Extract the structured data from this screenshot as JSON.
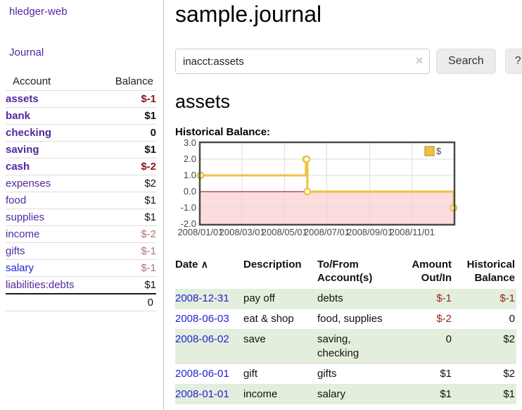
{
  "sidebar": {
    "brand": "hledger-web",
    "journal_link": "Journal",
    "accounts_table": {
      "headers": {
        "account": "Account",
        "balance": "Balance"
      },
      "rows": [
        {
          "account": "assets",
          "indent": 1,
          "balance": "$-1",
          "bold": true,
          "negative": "strong"
        },
        {
          "account": "bank",
          "indent": 2,
          "balance": "$1",
          "bold": true,
          "negative": null
        },
        {
          "account": "checking",
          "indent": 3,
          "balance": "0",
          "bold": true,
          "negative": null
        },
        {
          "account": "saving",
          "indent": 3,
          "balance": "$1",
          "bold": true,
          "negative": null
        },
        {
          "account": "cash",
          "indent": 2,
          "balance": "$-2",
          "bold": true,
          "negative": "strong"
        },
        {
          "account": "expenses",
          "indent": 1,
          "balance": "$2",
          "bold": false,
          "negative": null
        },
        {
          "account": "food",
          "indent": 2,
          "balance": "$1",
          "bold": false,
          "negative": null
        },
        {
          "account": "supplies",
          "indent": 2,
          "balance": "$1",
          "bold": false,
          "negative": null
        },
        {
          "account": "income",
          "indent": 1,
          "balance": "$-2",
          "bold": false,
          "negative": "soft"
        },
        {
          "account": "gifts",
          "indent": 2,
          "balance": "$-1",
          "bold": false,
          "negative": "soft"
        },
        {
          "account": "salary",
          "indent": 2,
          "balance": "$-1",
          "bold": false,
          "negative": "soft",
          "link_color": "blue"
        },
        {
          "account": "liabilities:debts",
          "indent": 1,
          "balance": "$1",
          "bold": false,
          "negative": null
        }
      ],
      "total": "0"
    }
  },
  "header": {
    "title": "sample.journal"
  },
  "search": {
    "value": "inacct:assets",
    "clear_icon": "✕",
    "search_button": "Search",
    "help_button": "?"
  },
  "account_heading": "assets",
  "chart_data": {
    "type": "line",
    "title": "Historical Balance:",
    "legend": "$",
    "legend_position": "top-right",
    "grid": true,
    "ylim": [
      -2,
      3
    ],
    "y_ticks": [
      "3.0",
      "2.0",
      "1.0",
      "0.0",
      "-1.0",
      "-2.0"
    ],
    "x_range_days": [
      0,
      365
    ],
    "x_ticks": [
      {
        "label": "2008/01/01",
        "day": 0
      },
      {
        "label": "2008/03/01",
        "day": 60
      },
      {
        "label": "2008/05/01",
        "day": 121
      },
      {
        "label": "2008/07/01",
        "day": 182
      },
      {
        "label": "2008/09/01",
        "day": 244
      },
      {
        "label": "2008/11/01",
        "day": 305
      }
    ],
    "series": [
      {
        "name": "$",
        "color": "#edc240",
        "step": true,
        "points": [
          {
            "date": "2008-01-01",
            "day": 0,
            "value": 1
          },
          {
            "date": "2008-06-01",
            "day": 152,
            "value": 2
          },
          {
            "date": "2008-06-02",
            "day": 153,
            "value": 2
          },
          {
            "date": "2008-06-03",
            "day": 154,
            "value": 0
          },
          {
            "date": "2008-12-31",
            "day": 365,
            "value": -1
          }
        ]
      }
    ],
    "negative_fill": "#fcdcdc",
    "zero_line_color": "#8b0000",
    "border_color": "#4a4a4a"
  },
  "register_table": {
    "headers": {
      "date": "Date",
      "description": "Description",
      "accounts": "To/From Account(s)",
      "amount": "Amount Out/In",
      "balance": "Historical Balance"
    },
    "sort_indicator": "∧",
    "rows": [
      {
        "date": "2008-12-31",
        "description": "pay off",
        "accounts": "debts",
        "amount": "$-1",
        "balance": "$-1",
        "amount_negative": true,
        "balance_negative": true
      },
      {
        "date": "2008-06-03",
        "description": "eat & shop",
        "accounts": "food, supplies",
        "amount": "$-2",
        "balance": "0",
        "amount_negative": true,
        "balance_negative": false
      },
      {
        "date": "2008-06-02",
        "description": "save",
        "accounts": "saving, checking",
        "amount": "0",
        "balance": "$2",
        "amount_negative": false,
        "balance_negative": false
      },
      {
        "date": "2008-06-01",
        "description": "gift",
        "accounts": "gifts",
        "amount": "$1",
        "balance": "$2",
        "amount_negative": false,
        "balance_negative": false
      },
      {
        "date": "2008-01-01",
        "description": "income",
        "accounts": "salary",
        "amount": "$1",
        "balance": "$1",
        "amount_negative": false,
        "balance_negative": false
      }
    ]
  },
  "colors": {
    "purple_link": "#52289e",
    "blue_link": "#2222d5",
    "negative_strong": "#8c1515",
    "negative_soft": "#b3706f",
    "register_negative": "#9b1c1c",
    "row_stripe_green": "#e3efdc",
    "chart_line": "#edc240",
    "chart_negative_region": "#fcdcdc",
    "chart_zero_line": "#8b0000"
  }
}
